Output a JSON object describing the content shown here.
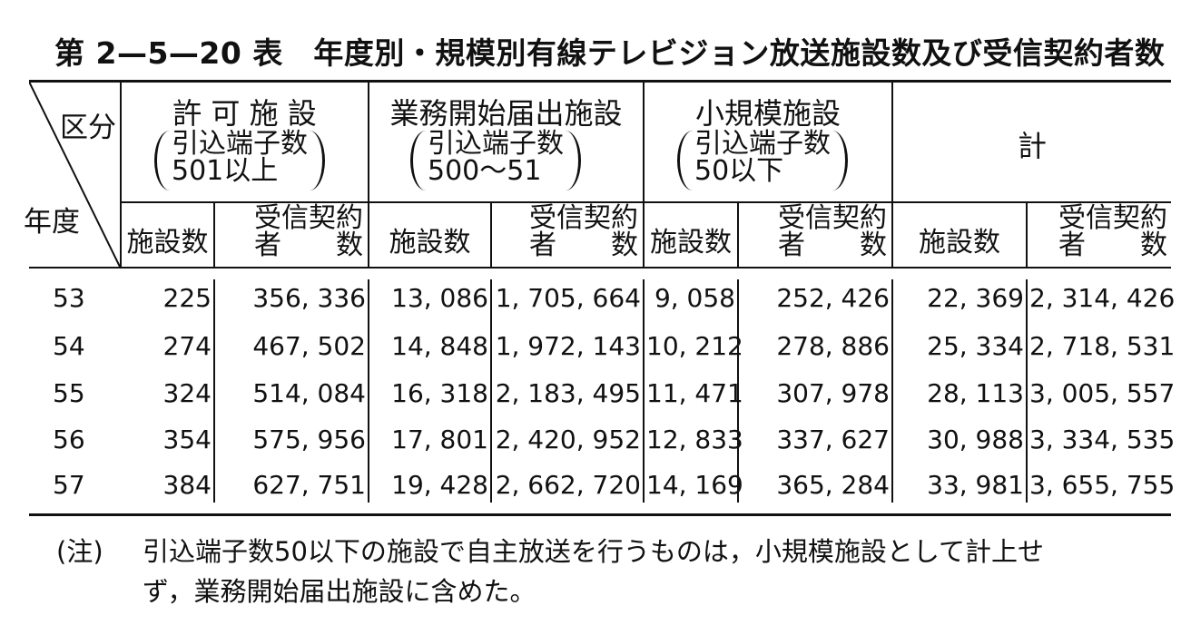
{
  "title": "第 2—5—20 表　年度別・規模別有線テレビジョン放送施設数及び受信契約者数",
  "header": {
    "corner_top": "区分",
    "corner_bottom": "年度",
    "groups": [
      {
        "name": "許 可 施 設",
        "paren_line1": "引込端子数",
        "paren_line2": "501以上"
      },
      {
        "name": "業務開始届出施設",
        "paren_line1": "引込端子数",
        "paren_line2": "500～51"
      },
      {
        "name": "小規模施設",
        "paren_line1": "引込端子数",
        "paren_line2": "50以下"
      },
      {
        "name": "計"
      }
    ],
    "sub_facilities": "施設数",
    "sub_subscribers_line1": "受信契約",
    "sub_subscribers_line2": "者　　数"
  },
  "rows": [
    {
      "year": "53",
      "values": [
        "225",
        "356, 336",
        "13, 086",
        "1, 705, 664",
        "9, 058",
        "252, 426",
        "22, 369",
        "2, 314, 426"
      ]
    },
    {
      "year": "54",
      "values": [
        "274",
        "467, 502",
        "14, 848",
        "1, 972, 143",
        "10, 212",
        "278, 886",
        "25, 334",
        "2, 718, 531"
      ]
    },
    {
      "year": "55",
      "values": [
        "324",
        "514, 084",
        "16, 318",
        "2, 183, 495",
        "11, 471",
        "307, 978",
        "28, 113",
        "3, 005, 557"
      ]
    },
    {
      "year": "56",
      "values": [
        "354",
        "575, 956",
        "17, 801",
        "2, 420, 952",
        "12, 833",
        "337, 627",
        "30, 988",
        "3, 334, 535"
      ]
    },
    {
      "year": "57",
      "values": [
        "384",
        "627, 751",
        "19, 428",
        "2, 662, 720",
        "14, 169",
        "365, 284",
        "33, 981",
        "3, 655, 755"
      ]
    }
  ],
  "note": {
    "label": "(注)",
    "line1": "引込端子数50以下の施設で自主放送を行うものは，小規模施設として計上せ",
    "line2": "ず，業務開始届出施設に含めた。"
  }
}
